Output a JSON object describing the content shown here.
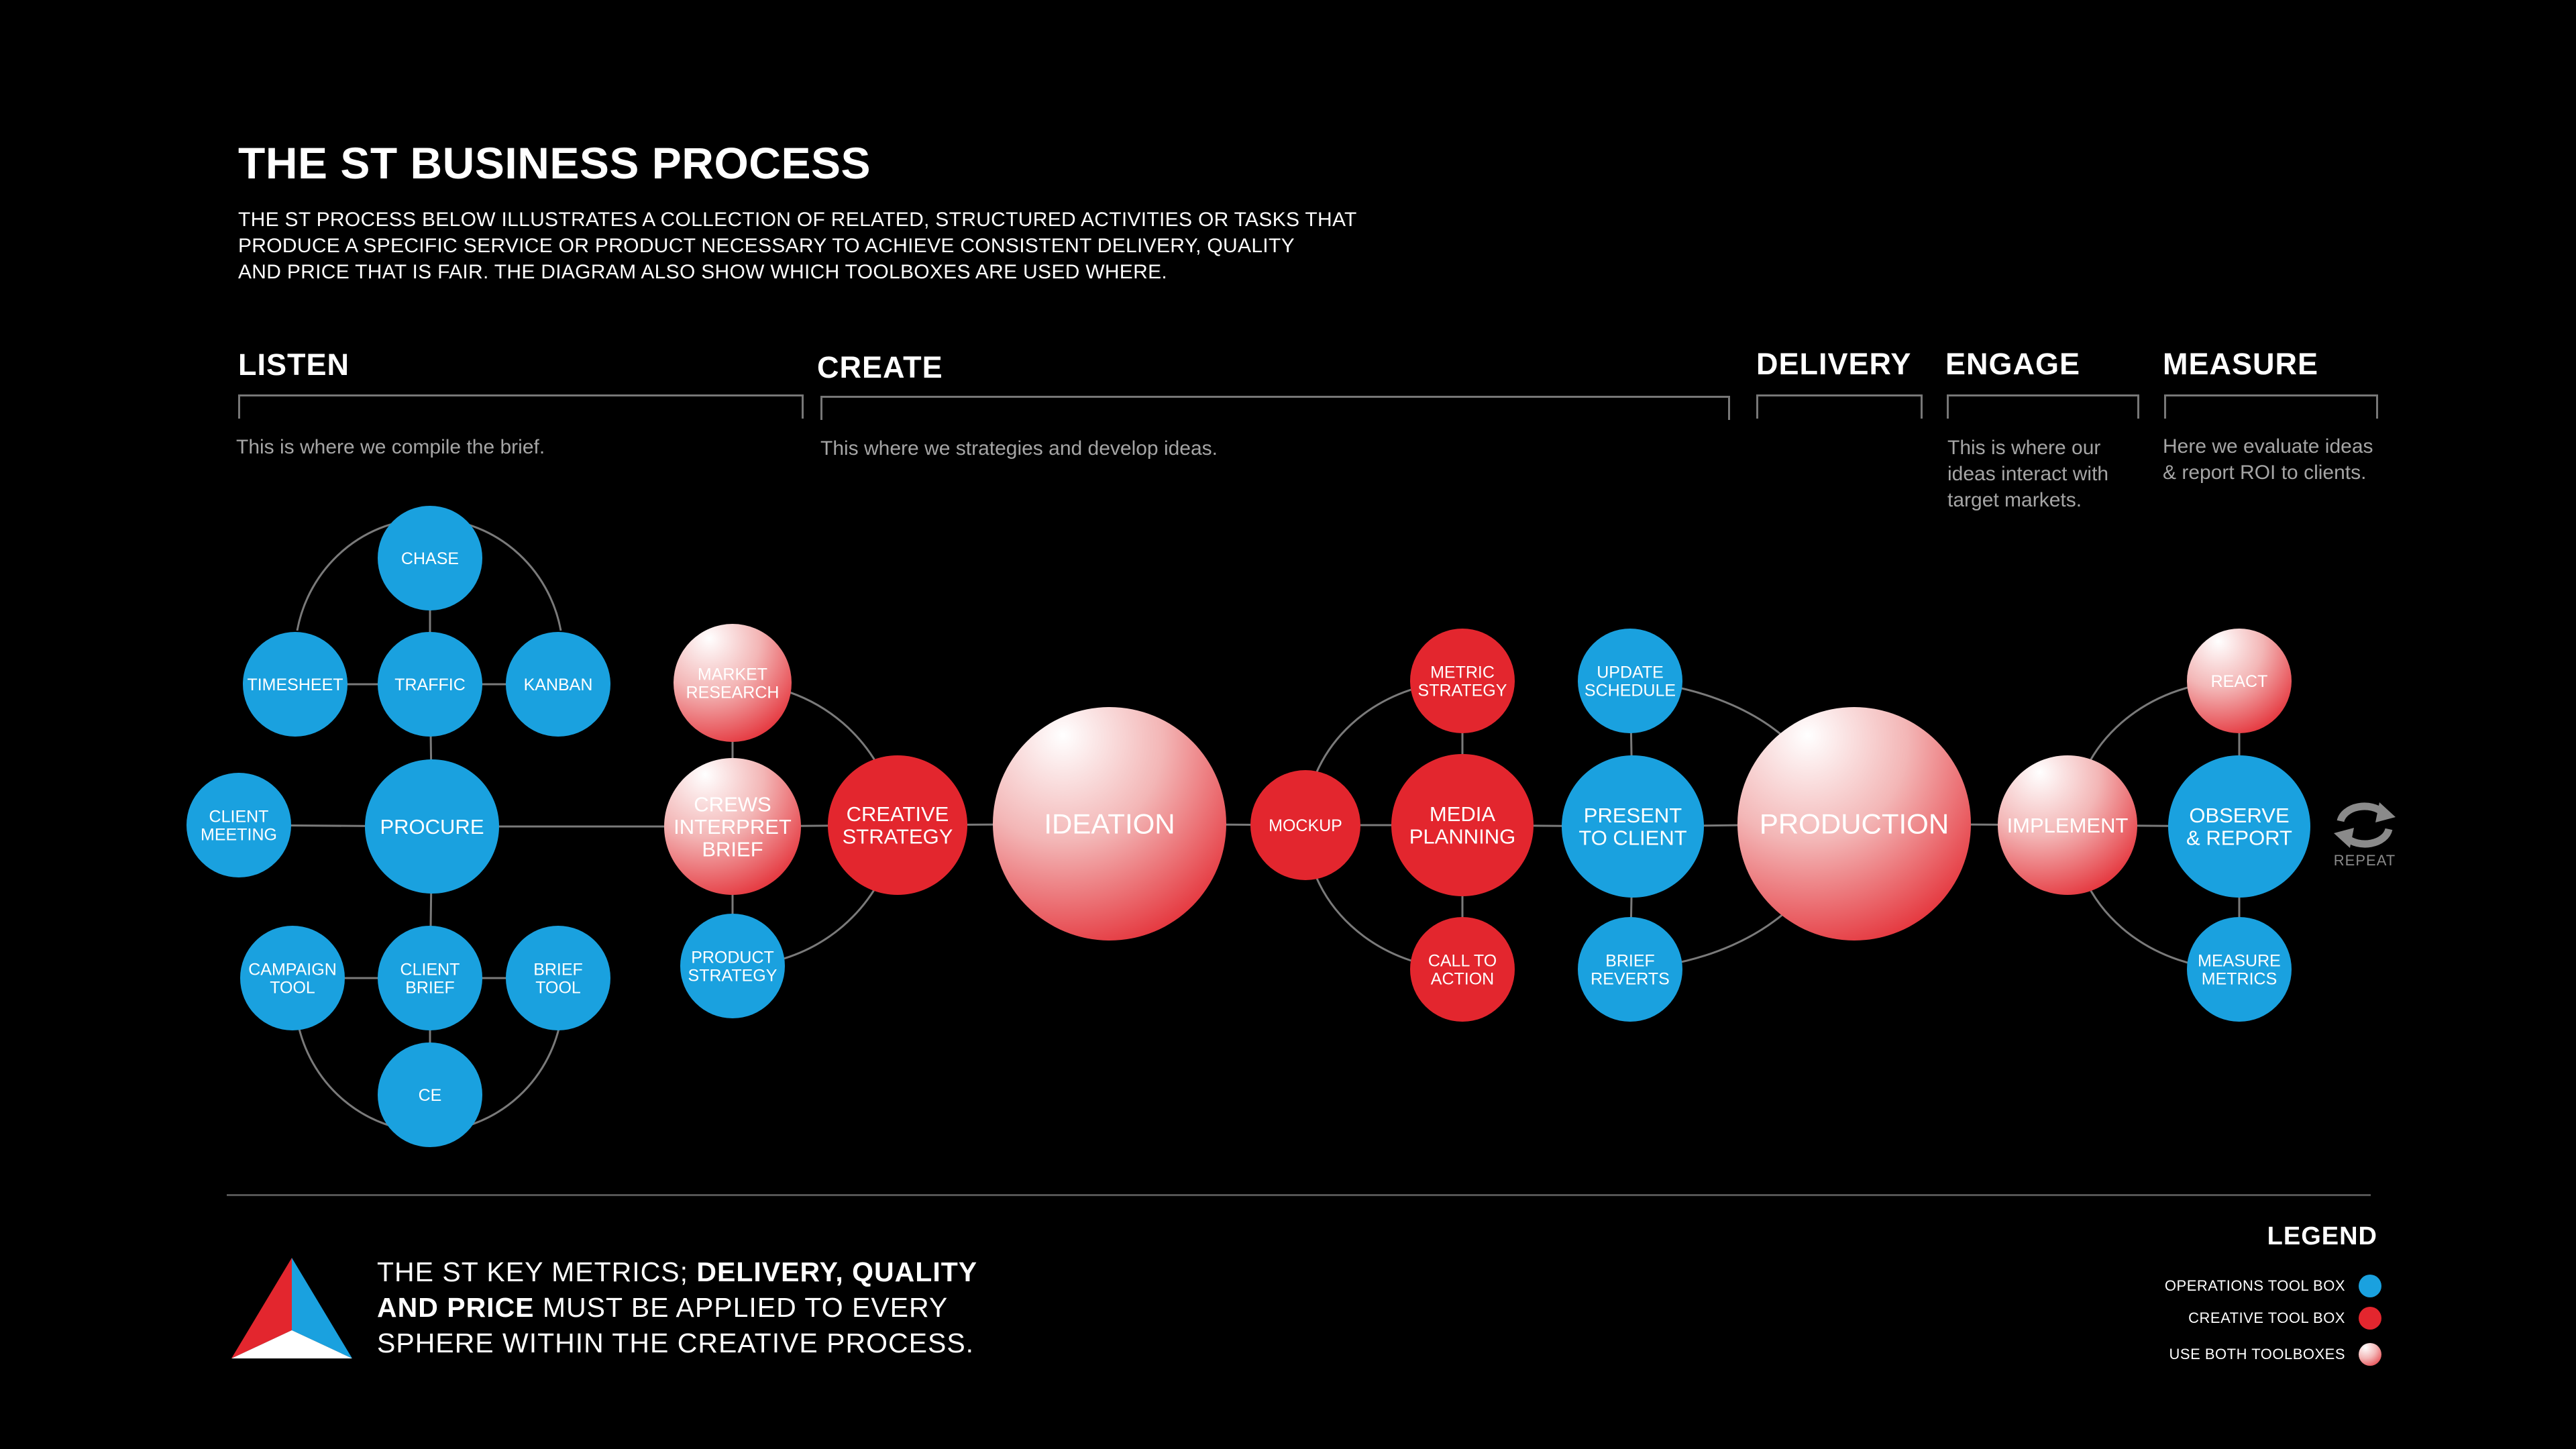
{
  "header": {
    "title": "THE ST BUSINESS PROCESS",
    "intro_lines": [
      "THE ST PROCESS BELOW ILLUSTRATES A COLLECTION OF RELATED, STRUCTURED ACTIVITIES OR TASKS THAT",
      "PRODUCE A SPECIFIC SERVICE OR PRODUCT NECESSARY TO ACHIEVE CONSISTENT DELIVERY, QUALITY",
      "AND PRICE THAT IS FAIR. THE DIAGRAM ALSO SHOW WHICH TOOLBOXES ARE USED WHERE."
    ]
  },
  "phases": {
    "listen": {
      "title": "LISTEN",
      "desc": [
        "This is where we compile the brief."
      ]
    },
    "create": {
      "title": "CREATE",
      "desc": [
        "This where we strategies and develop ideas."
      ]
    },
    "delivery": {
      "title": "DELIVERY",
      "desc": []
    },
    "engage": {
      "title": "ENGAGE",
      "desc": [
        "This is where our",
        "ideas interact with",
        "target markets."
      ]
    },
    "measure": {
      "title": "MEASURE",
      "desc": [
        "Here we evaluate ideas",
        "& report ROI to clients."
      ]
    }
  },
  "colors": {
    "operations": "#1aa1df",
    "creative": "#e3262e",
    "both_light": "#ffffff",
    "both_dark": "#e3262e",
    "background": "#000000",
    "line": "#7a7a7a"
  },
  "nodes": [
    {
      "id": "chase",
      "lines": [
        "CHASE"
      ],
      "type": "operations"
    },
    {
      "id": "timesheet",
      "lines": [
        "TIMESHEET"
      ],
      "type": "operations"
    },
    {
      "id": "traffic",
      "lines": [
        "TRAFFIC"
      ],
      "type": "operations"
    },
    {
      "id": "kanban",
      "lines": [
        "KANBAN"
      ],
      "type": "operations"
    },
    {
      "id": "client-meeting",
      "lines": [
        "CLIENT",
        "MEETING"
      ],
      "type": "operations"
    },
    {
      "id": "procure",
      "lines": [
        "PROCURE"
      ],
      "type": "operations"
    },
    {
      "id": "campaign-tool",
      "lines": [
        "CAMPAIGN",
        "TOOL"
      ],
      "type": "operations"
    },
    {
      "id": "client-brief",
      "lines": [
        "CLIENT",
        "BRIEF"
      ],
      "type": "operations"
    },
    {
      "id": "brief-tool",
      "lines": [
        "BRIEF",
        "TOOL"
      ],
      "type": "operations"
    },
    {
      "id": "ce",
      "lines": [
        "CE"
      ],
      "type": "operations"
    },
    {
      "id": "market-research",
      "lines": [
        "MARKET",
        "RESEARCH"
      ],
      "type": "both"
    },
    {
      "id": "crews-interpret-brief",
      "lines": [
        "CREWS",
        "INTERPRET",
        "BRIEF"
      ],
      "type": "both"
    },
    {
      "id": "product-strategy",
      "lines": [
        "PRODUCT",
        "STRATEGY"
      ],
      "type": "operations"
    },
    {
      "id": "creative-strategy",
      "lines": [
        "CREATIVE",
        "STRATEGY"
      ],
      "type": "creative"
    },
    {
      "id": "ideation",
      "lines": [
        "IDEATION"
      ],
      "type": "both"
    },
    {
      "id": "mockup",
      "lines": [
        "MOCKUP"
      ],
      "type": "creative"
    },
    {
      "id": "metric-strategy",
      "lines": [
        "METRIC",
        "STRATEGY"
      ],
      "type": "creative"
    },
    {
      "id": "media-planning",
      "lines": [
        "MEDIA",
        "PLANNING"
      ],
      "type": "creative"
    },
    {
      "id": "call-to-action",
      "lines": [
        "CALL TO",
        "ACTION"
      ],
      "type": "creative"
    },
    {
      "id": "update-schedule",
      "lines": [
        "UPDATE",
        "SCHEDULE"
      ],
      "type": "operations"
    },
    {
      "id": "present-to-client",
      "lines": [
        "PRESENT",
        "TO CLIENT"
      ],
      "type": "operations"
    },
    {
      "id": "brief-reverts",
      "lines": [
        "BRIEF",
        "REVERTS"
      ],
      "type": "operations"
    },
    {
      "id": "production",
      "lines": [
        "PRODUCTION"
      ],
      "type": "both"
    },
    {
      "id": "implement",
      "lines": [
        "IMPLEMENT"
      ],
      "type": "both"
    },
    {
      "id": "react",
      "lines": [
        "REACT"
      ],
      "type": "both"
    },
    {
      "id": "observe-report",
      "lines": [
        "OBSERVE",
        "& REPORT"
      ],
      "type": "operations"
    },
    {
      "id": "measure-metrics",
      "lines": [
        "MEASURE",
        "METRICS"
      ],
      "type": "operations"
    }
  ],
  "edges": [
    [
      "client-meeting",
      "procure"
    ],
    [
      "procure",
      "crews-interpret-brief"
    ],
    [
      "traffic",
      "procure"
    ],
    [
      "procure",
      "client-brief"
    ],
    [
      "chase",
      "traffic"
    ],
    [
      "client-brief",
      "ce"
    ],
    [
      "timesheet",
      "traffic"
    ],
    [
      "traffic",
      "kanban"
    ],
    [
      "campaign-tool",
      "client-brief"
    ],
    [
      "client-brief",
      "brief-tool"
    ],
    [
      "market-research",
      "crews-interpret-brief"
    ],
    [
      "crews-interpret-brief",
      "product-strategy"
    ],
    [
      "crews-interpret-brief",
      "creative-strategy"
    ],
    [
      "creative-strategy",
      "ideation"
    ],
    [
      "ideation",
      "mockup"
    ],
    [
      "mockup",
      "media-planning"
    ],
    [
      "metric-strategy",
      "media-planning"
    ],
    [
      "media-planning",
      "call-to-action"
    ],
    [
      "media-planning",
      "present-to-client"
    ],
    [
      "update-schedule",
      "present-to-client"
    ],
    [
      "present-to-client",
      "brief-reverts"
    ],
    [
      "present-to-client",
      "production"
    ],
    [
      "production",
      "implement"
    ],
    [
      "implement",
      "observe-report"
    ],
    [
      "react",
      "observe-report"
    ],
    [
      "observe-report",
      "measure-metrics"
    ]
  ],
  "repeat": {
    "label": "REPEAT"
  },
  "footer": {
    "metrics_lines": [
      [
        {
          "t": "THE ST KEY METRICS; ",
          "b": false
        },
        {
          "t": "DELIVERY, QUALITY",
          "b": true
        }
      ],
      [
        {
          "t": "AND PRICE",
          "b": true
        },
        {
          "t": " MUST BE APPLIED TO EVERY",
          "b": false
        }
      ],
      [
        {
          "t": "SPHERE WITHIN THE CREATIVE PROCESS.",
          "b": false
        }
      ]
    ]
  },
  "legend": {
    "title": "LEGEND",
    "items": [
      {
        "label": "OPERATIONS TOOL BOX",
        "type": "operations"
      },
      {
        "label": "CREATIVE TOOL BOX",
        "type": "creative"
      },
      {
        "label": "USE BOTH TOOLBOXES",
        "type": "both"
      }
    ]
  }
}
